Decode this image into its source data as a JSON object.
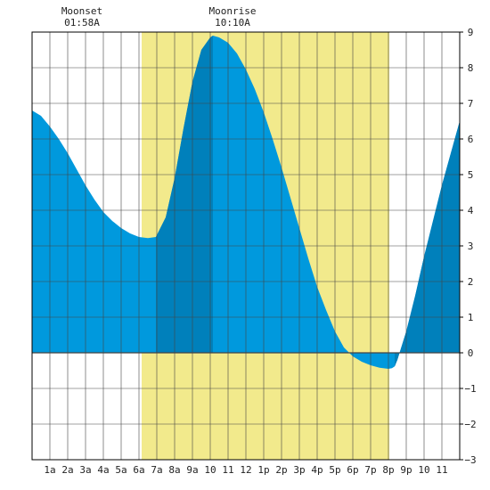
{
  "annotations": {
    "moonset_label": "Moonset",
    "moonset_time": "01:58A",
    "moonrise_label": "Moonrise",
    "moonrise_time": "10:10A"
  },
  "chart_data": {
    "type": "area",
    "title": "",
    "xlabel": "",
    "ylabel": "",
    "x_tick_labels": [
      "1a",
      "2a",
      "3a",
      "4a",
      "5a",
      "6a",
      "7a",
      "8a",
      "9a",
      "10",
      "11",
      "12",
      "1p",
      "2p",
      "3p",
      "4p",
      "5p",
      "6p",
      "7p",
      "8p",
      "9p",
      "10",
      "11"
    ],
    "y_ticks": [
      9,
      8,
      7,
      6,
      5,
      4,
      3,
      2,
      1,
      0,
      -1,
      -2,
      -3
    ],
    "xlim": [
      0,
      24
    ],
    "ylim": [
      -3,
      9
    ],
    "grid": true,
    "daylight": {
      "start_hour": 6.15,
      "end_hour": 20.05,
      "color": "#f2ea8c"
    },
    "moonset_hour": 1.97,
    "moonrise_hour": 10.17,
    "colors": {
      "tide_light": "#0099dd",
      "tide_dark": "#0080bb",
      "grid": "#444444",
      "axis": "#000000"
    },
    "dark_bands": [
      [
        6.95,
        10.15
      ],
      [
        20.35,
        24
      ]
    ],
    "series": [
      {
        "x": [
          0,
          0.5,
          1,
          1.5,
          2,
          2.5,
          3,
          3.5,
          4,
          4.5,
          5,
          5.5,
          6,
          6.5,
          6.95,
          7.5,
          8,
          8.5,
          9,
          9.5,
          10,
          10.15,
          10.5,
          11,
          11.5,
          12,
          12.5,
          13,
          13.5,
          14,
          14.5,
          15,
          15.5,
          16,
          16.5,
          17,
          17.5,
          18,
          18.5,
          19,
          19.5,
          20,
          20.2,
          20.35,
          20.5,
          21,
          21.5,
          22,
          22.5,
          23,
          23.5,
          24
        ],
        "y": [
          6.8,
          6.65,
          6.35,
          6.0,
          5.6,
          5.15,
          4.7,
          4.3,
          3.95,
          3.7,
          3.5,
          3.35,
          3.25,
          3.22,
          3.25,
          3.8,
          4.9,
          6.3,
          7.6,
          8.5,
          8.85,
          8.9,
          8.85,
          8.7,
          8.4,
          7.95,
          7.4,
          6.75,
          6.0,
          5.2,
          4.35,
          3.5,
          2.65,
          1.85,
          1.2,
          0.6,
          0.15,
          -0.1,
          -0.25,
          -0.35,
          -0.42,
          -0.45,
          -0.43,
          -0.38,
          -0.2,
          0.6,
          1.6,
          2.7,
          3.7,
          4.7,
          5.6,
          6.5
        ]
      }
    ]
  }
}
